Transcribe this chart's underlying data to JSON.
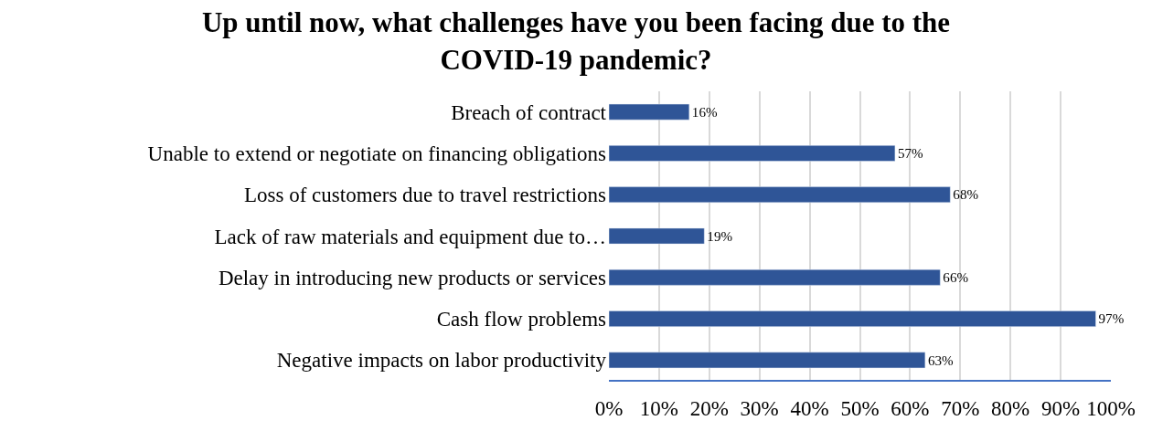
{
  "chart_data": {
    "type": "bar",
    "orientation": "horizontal",
    "title": "Up until now, what challenges have you been facing due to the\nCOVID-19 pandemic?",
    "categories": [
      "Breach of contract",
      "Unable to extend or negotiate on financing obligations",
      "Loss of customers due to travel restrictions",
      "Lack of raw materials and equipment due to…",
      "Delay in introducing new products or services",
      "Cash flow problems",
      "Negative impacts on labor productivity"
    ],
    "values": [
      16,
      57,
      68,
      19,
      66,
      97,
      63
    ],
    "value_labels": [
      "16%",
      "57%",
      "68%",
      "19%",
      "66%",
      "97%",
      "63%"
    ],
    "color": "#2f5597",
    "xlim": [
      0,
      100
    ],
    "xticks": [
      {
        "value": 0,
        "label": "0%"
      },
      {
        "value": 10,
        "label": "10%"
      },
      {
        "value": 20,
        "label": "20%"
      },
      {
        "value": 30,
        "label": "30%"
      },
      {
        "value": 40,
        "label": "40%"
      },
      {
        "value": 50,
        "label": "50%"
      },
      {
        "value": 60,
        "label": "60%"
      },
      {
        "value": 70,
        "label": "70%"
      },
      {
        "value": 80,
        "label": "80%"
      },
      {
        "value": 90,
        "label": "90%"
      },
      {
        "value": 100,
        "label": "100%"
      }
    ],
    "grid": "x"
  }
}
